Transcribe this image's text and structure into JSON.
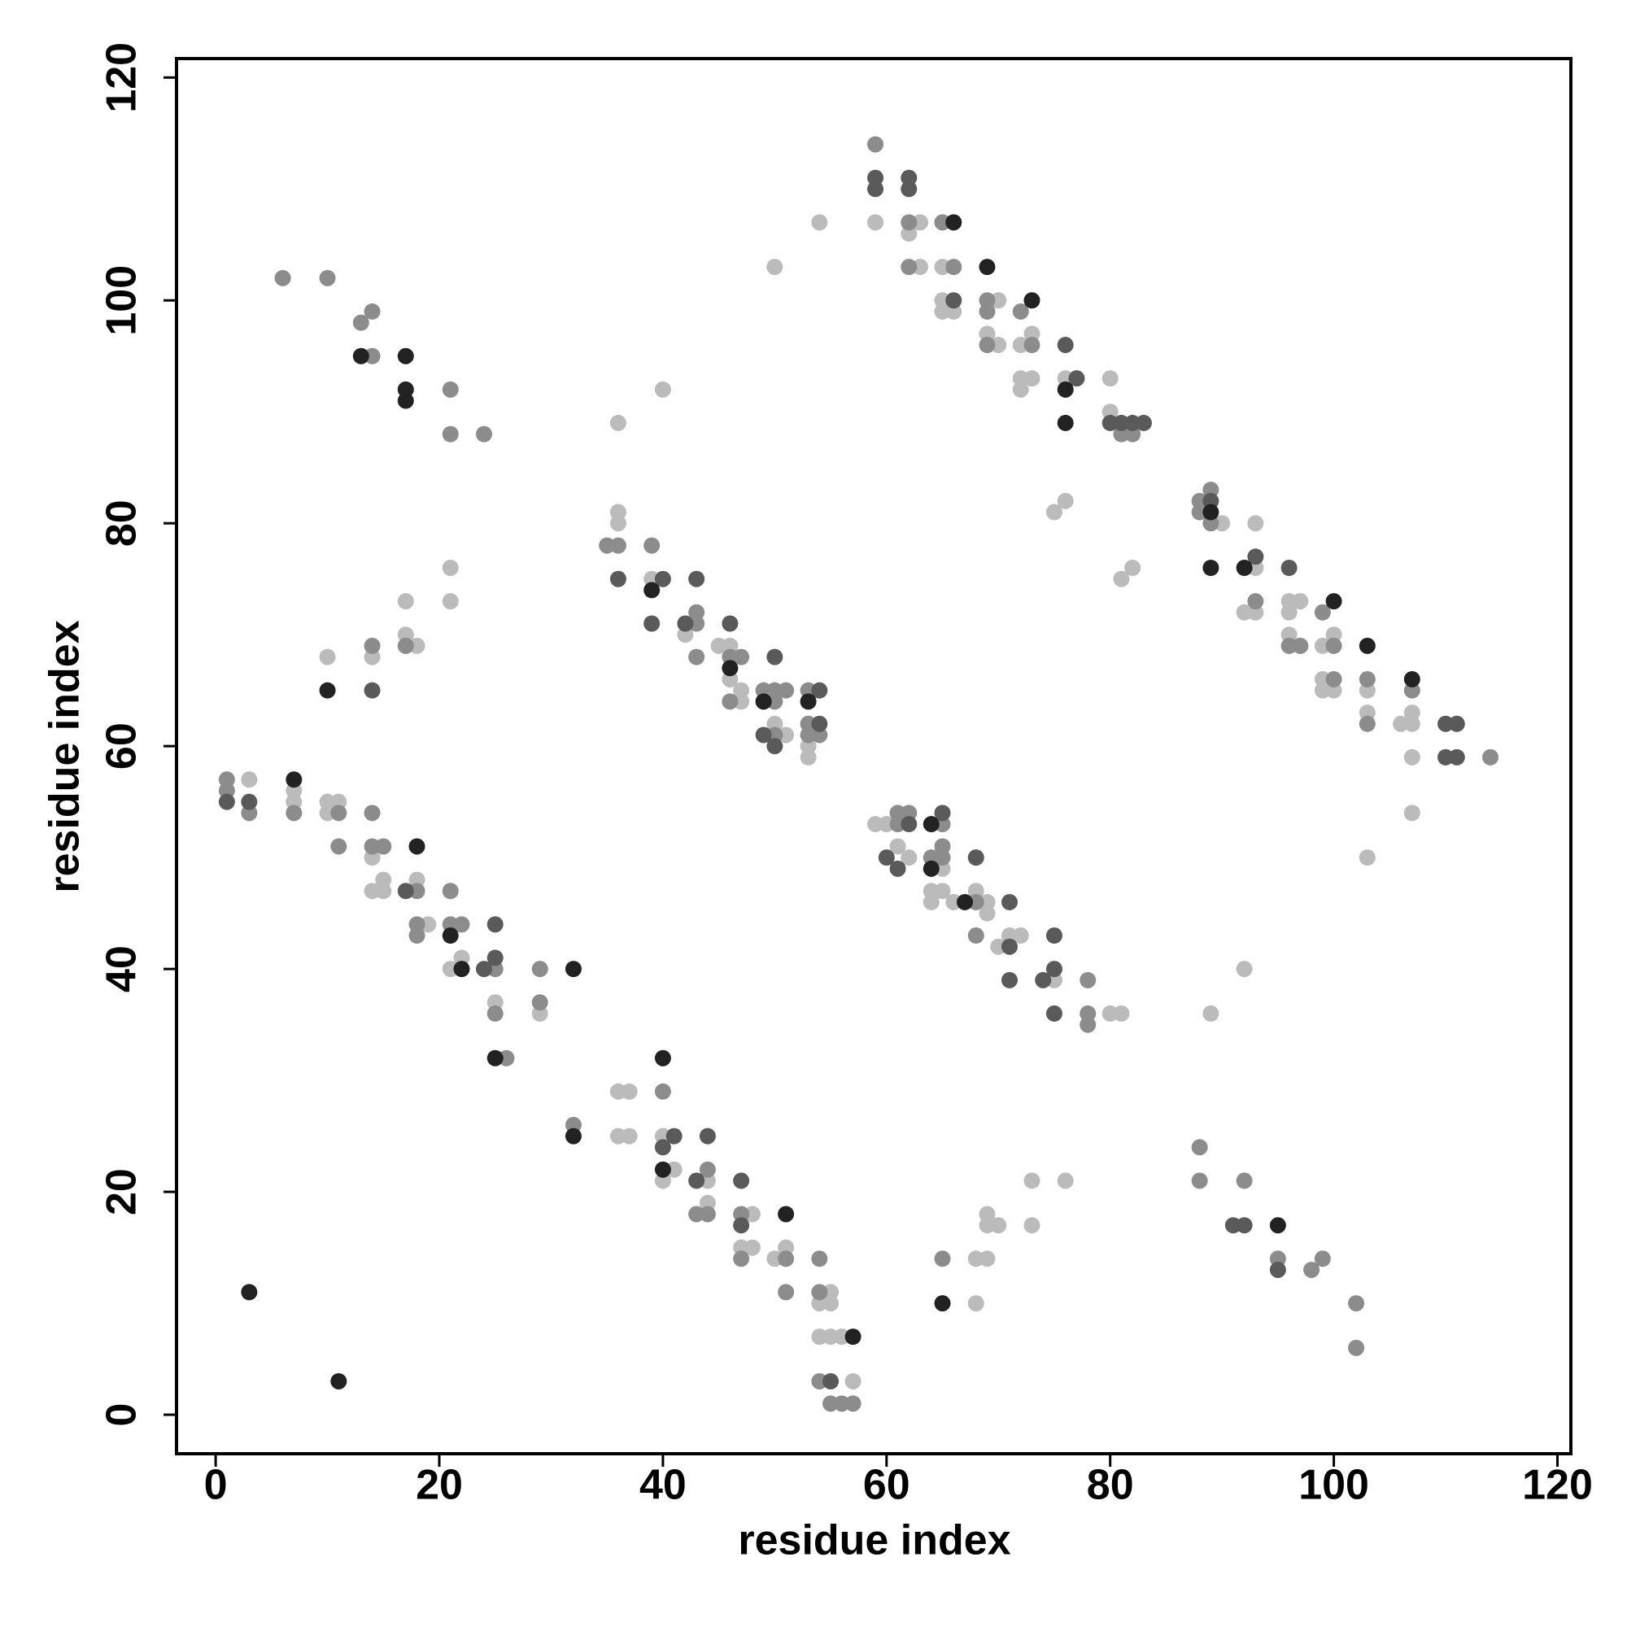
{
  "chart_data": {
    "type": "scatter",
    "x_label": "residue index",
    "y_label": "residue index",
    "xlim": [
      -3.5,
      121.2
    ],
    "ylim": [
      -3.5,
      121.7
    ],
    "xticks": [
      0,
      20,
      40,
      60,
      80,
      100,
      120
    ],
    "yticks": [
      0,
      20,
      40,
      60,
      80,
      100,
      120
    ],
    "series": [
      {
        "color": "#bbbbbb",
        "x": [
          10,
          14,
          17,
          18,
          17,
          21,
          21,
          3,
          7,
          7,
          10,
          10,
          11,
          14,
          14,
          15,
          15,
          18,
          19,
          21,
          22,
          25,
          29,
          36,
          37,
          36,
          37,
          40,
          40,
          41,
          44,
          44,
          48,
          47,
          48,
          50,
          51,
          55,
          54,
          55,
          54,
          55,
          56,
          57,
          36,
          40,
          36,
          36,
          39,
          42,
          45,
          46,
          46,
          47,
          47,
          50,
          51,
          53,
          53,
          50,
          54,
          59,
          60,
          61,
          62,
          65,
          64,
          65,
          64,
          66,
          68,
          69,
          69,
          70,
          71,
          72,
          75,
          80,
          81,
          68,
          69,
          68,
          69,
          69,
          70,
          73,
          76,
          73,
          92,
          89,
          103,
          59,
          63,
          62,
          63,
          65,
          65,
          65,
          66,
          70,
          69,
          70,
          72,
          73,
          72,
          73,
          72,
          76,
          80,
          80,
          75,
          76,
          81,
          82,
          90,
          93,
          93,
          92,
          93,
          96,
          97,
          96,
          96,
          99,
          100,
          99,
          99,
          100,
          103,
          103,
          106,
          107,
          107,
          107,
          107
        ],
        "y": [
          68,
          68,
          70,
          69,
          73,
          73,
          76,
          57,
          56,
          55,
          55,
          54,
          55,
          50,
          47,
          48,
          47,
          48,
          44,
          40,
          41,
          37,
          36,
          29,
          29,
          25,
          25,
          25,
          21,
          22,
          21,
          19,
          18,
          15,
          15,
          14,
          15,
          11,
          10,
          10,
          7,
          7,
          7,
          3,
          89,
          92,
          81,
          80,
          75,
          70,
          69,
          69,
          66,
          65,
          64,
          62,
          61,
          60,
          59,
          103,
          107,
          53,
          53,
          51,
          50,
          49,
          47,
          47,
          46,
          46,
          47,
          46,
          45,
          42,
          43,
          43,
          39,
          36,
          36,
          14,
          14,
          10,
          18,
          17,
          17,
          21,
          21,
          17,
          40,
          36,
          50,
          107,
          107,
          106,
          103,
          103,
          100,
          99,
          99,
          100,
          97,
          96,
          96,
          97,
          93,
          93,
          92,
          93,
          93,
          90,
          81,
          82,
          75,
          76,
          80,
          80,
          76,
          72,
          72,
          73,
          73,
          72,
          70,
          69,
          70,
          66,
          65,
          65,
          65,
          63,
          62,
          63,
          62,
          59,
          54
        ]
      },
      {
        "color": "#8c8c8c",
        "x": [
          6,
          10,
          13,
          14,
          14,
          21,
          21,
          24,
          14,
          17,
          1,
          1,
          3,
          7,
          11,
          11,
          14,
          14,
          15,
          18,
          18,
          18,
          21,
          21,
          22,
          25,
          25,
          26,
          29,
          29,
          32,
          40,
          44,
          43,
          44,
          47,
          47,
          51,
          51,
          54,
          54,
          54,
          55,
          56,
          57,
          35,
          36,
          39,
          43,
          43,
          43,
          46,
          47,
          46,
          49,
          50,
          51,
          50,
          50,
          53,
          53,
          53,
          54,
          61,
          62,
          61,
          65,
          64,
          65,
          65,
          68,
          68,
          78,
          78,
          78,
          65,
          88,
          88,
          92,
          95,
          98,
          99,
          102,
          102,
          59,
          62,
          65,
          62,
          66,
          69,
          69,
          69,
          72,
          73,
          81,
          82,
          88,
          88,
          89,
          89,
          93,
          96,
          97,
          99,
          100,
          100,
          103,
          103,
          107,
          114
        ],
        "y": [
          102,
          102,
          98,
          99,
          95,
          92,
          88,
          88,
          69,
          69,
          57,
          56,
          54,
          54,
          54,
          51,
          54,
          51,
          51,
          47,
          44,
          43,
          47,
          44,
          44,
          40,
          36,
          32,
          40,
          37,
          26,
          29,
          22,
          18,
          18,
          18,
          14,
          14,
          11,
          14,
          11,
          3,
          1,
          1,
          1,
          78,
          78,
          78,
          72,
          71,
          68,
          68,
          68,
          64,
          65,
          65,
          65,
          64,
          61,
          65,
          62,
          61,
          61,
          54,
          54,
          53,
          53,
          50,
          51,
          50,
          46,
          43,
          39,
          36,
          35,
          14,
          24,
          21,
          21,
          14,
          13,
          14,
          10,
          6,
          114,
          107,
          107,
          103,
          103,
          100,
          99,
          96,
          99,
          96,
          88,
          88,
          82,
          81,
          83,
          80,
          73,
          69,
          69,
          72,
          69,
          66,
          66,
          62,
          65,
          59
        ]
      },
      {
        "color": "#5a5a5a",
        "x": [
          14,
          1,
          3,
          17,
          24,
          25,
          25,
          40,
          41,
          43,
          44,
          47,
          47,
          55,
          36,
          40,
          39,
          43,
          42,
          46,
          49,
          50,
          50,
          54,
          54,
          62,
          65,
          60,
          61,
          68,
          71,
          71,
          71,
          74,
          75,
          75,
          75,
          91,
          92,
          95,
          59,
          59,
          62,
          62,
          66,
          76,
          77,
          80,
          81,
          82,
          83,
          89,
          93,
          96,
          110,
          111,
          110,
          111
        ],
        "y": [
          65,
          55,
          55,
          47,
          40,
          41,
          44,
          24,
          25,
          21,
          25,
          21,
          17,
          3,
          75,
          75,
          71,
          75,
          71,
          71,
          61,
          68,
          60,
          65,
          62,
          53,
          54,
          50,
          49,
          50,
          46,
          42,
          39,
          39,
          43,
          40,
          36,
          17,
          17,
          13,
          111,
          110,
          111,
          110,
          100,
          96,
          93,
          89,
          89,
          89,
          89,
          82,
          77,
          76,
          62,
          62,
          59,
          59
        ]
      },
      {
        "color": "#222222",
        "x": [
          13,
          17,
          17,
          17,
          10,
          7,
          18,
          21,
          22,
          25,
          32,
          32,
          40,
          40,
          51,
          57,
          3,
          11,
          39,
          46,
          49,
          53,
          64,
          64,
          67,
          65,
          95,
          66,
          69,
          73,
          76,
          76,
          89,
          89,
          92,
          100,
          103,
          107
        ],
        "y": [
          95,
          95,
          92,
          91,
          65,
          57,
          51,
          43,
          40,
          32,
          40,
          25,
          32,
          22,
          18,
          7,
          11,
          3,
          74,
          67,
          64,
          64,
          53,
          49,
          46,
          10,
          17,
          107,
          103,
          100,
          92,
          89,
          81,
          76,
          76,
          73,
          69,
          66
        ]
      }
    ]
  }
}
